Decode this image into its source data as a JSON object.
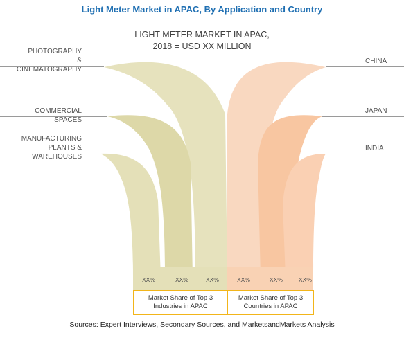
{
  "title": "Light Meter Market in APAC, By Application and Country",
  "center_title_line1": "LIGHT METER MARKET IN APAC,",
  "center_title_line2": "2018 = USD XX MILLION",
  "applications": [
    {
      "line1": "PHOTOGRAPHY",
      "line2": "& CINEMATOGRAPHY",
      "value": "XX%"
    },
    {
      "line1": "COMMERCIAL SPACES",
      "line2": "",
      "value": "XX%"
    },
    {
      "line1": "MANUFACTURING",
      "line2": "PLANTS & WAREHOUSES",
      "value": "XX%"
    }
  ],
  "countries": [
    {
      "label": "CHINA",
      "value": "XX%"
    },
    {
      "label": "JAPAN",
      "value": "XX%"
    },
    {
      "label": "INDIA",
      "value": "XX%"
    }
  ],
  "boxes": {
    "left_line1": "Market Share of Top 3",
    "left_line2": "Industries in APAC",
    "right_line1": "Market Share of Top 3",
    "right_line2": "Countries in APAC"
  },
  "sources": "Sources: Expert Interviews, Secondary Sources, and MarketsandMarkets Analysis",
  "colors": {
    "title": "#1f6fb2",
    "left_light": "#e6e2bd",
    "left_mid": "#ddd8a8",
    "left_dark": "#d2cd94",
    "right_light": "#f9d8c0",
    "right_mid": "#f8c6a1",
    "right_dark": "#f6b58c",
    "box_border": "#f2b51a"
  }
}
